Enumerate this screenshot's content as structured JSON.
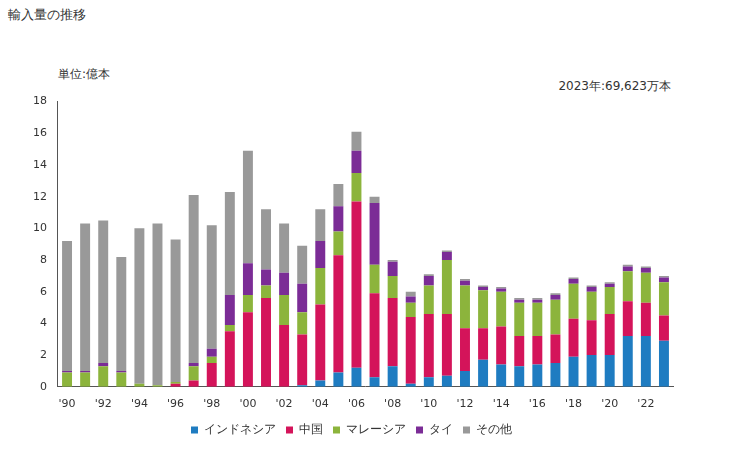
{
  "chart_data": {
    "type": "bar",
    "title": "輸入量の推移",
    "y_label": "単位:億本",
    "annotations": [
      "2023年:69,623万本"
    ],
    "categories": [
      "'90",
      null,
      "'92",
      null,
      "'94",
      null,
      "'96",
      null,
      "'98",
      null,
      "'00",
      null,
      "'02",
      null,
      "'04",
      null,
      "'06",
      null,
      "'08",
      null,
      "'10",
      null,
      "'12",
      null,
      "'14",
      null,
      "'16",
      null,
      "'18",
      null,
      "'20",
      null,
      "'22",
      null
    ],
    "stacked": true,
    "grid": false,
    "legend": "bottom",
    "ylim": [
      0,
      18
    ],
    "yticks": [
      0,
      2,
      4,
      6,
      8,
      10,
      12,
      14,
      16,
      18
    ],
    "series": [
      {
        "name": "インドネシア",
        "color": "#1f7cc1",
        "values": [
          0,
          0,
          0,
          0,
          0,
          0,
          0,
          0,
          0,
          0,
          0,
          0,
          0,
          0.1,
          0.4,
          0.9,
          1.2,
          0.6,
          1.3,
          0.2,
          0.6,
          0.7,
          1.0,
          1.7,
          1.4,
          1.3,
          1.4,
          1.5,
          1.9,
          2.0,
          2.0,
          3.2,
          3.2,
          2.9
        ]
      },
      {
        "name": "中国",
        "color": "#d4145a",
        "values": [
          0,
          0,
          0,
          0,
          0,
          0,
          0.2,
          0.4,
          1.5,
          3.5,
          4.7,
          5.6,
          3.9,
          3.2,
          4.8,
          7.4,
          10.5,
          5.3,
          4.3,
          4.2,
          4.0,
          3.9,
          2.7,
          2.0,
          2.4,
          1.9,
          1.8,
          1.8,
          2.4,
          2.2,
          2.6,
          2.2,
          2.1,
          1.6
        ]
      },
      {
        "name": "マレーシア",
        "color": "#8cb43c",
        "values": [
          0.9,
          0.9,
          1.3,
          0.9,
          0.2,
          0.1,
          0.1,
          0.9,
          0.4,
          0.4,
          1.1,
          0.8,
          1.9,
          1.4,
          2.3,
          1.5,
          1.8,
          1.8,
          1.4,
          0.9,
          1.8,
          3.4,
          2.7,
          2.4,
          2.2,
          2.1,
          2.1,
          2.2,
          2.2,
          1.8,
          1.7,
          1.9,
          1.9,
          2.1
        ]
      },
      {
        "name": "タイ",
        "color": "#7b2c96",
        "values": [
          0.1,
          0.1,
          0.2,
          0.1,
          0,
          0,
          0,
          0.2,
          0.5,
          1.9,
          2.0,
          1.0,
          1.4,
          1.8,
          1.7,
          1.6,
          1.4,
          3.9,
          0.9,
          0.4,
          0.6,
          0.5,
          0.3,
          0.2,
          0.2,
          0.2,
          0.2,
          0.3,
          0.3,
          0.3,
          0.2,
          0.3,
          0.3,
          0.3
        ]
      },
      {
        "name": "その他",
        "color": "#999999",
        "values": [
          8.2,
          9.3,
          9.0,
          7.2,
          9.8,
          10.2,
          9.0,
          10.6,
          7.8,
          6.5,
          7.1,
          3.8,
          3.1,
          2.4,
          2.0,
          1.4,
          1.2,
          0.4,
          0.1,
          0.3,
          0.1,
          0.1,
          0.1,
          0.1,
          0.1,
          0.1,
          0.1,
          0.1,
          0.1,
          0.1,
          0.1,
          0.1,
          0.1,
          0.1
        ]
      }
    ]
  }
}
